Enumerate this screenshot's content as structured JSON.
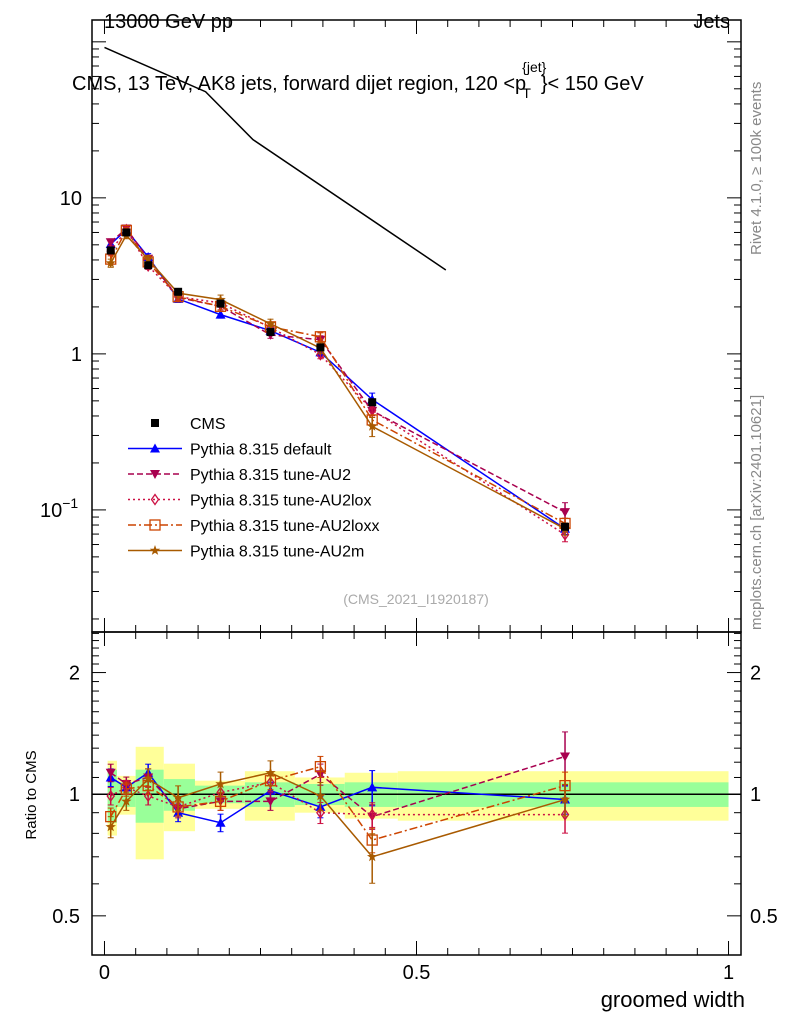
{
  "chart_data": {
    "type": "line",
    "header_left": "13000 GeV pp",
    "header_right": "Jets",
    "title_main": "CMS, 13 TeV, AK8 jets, forward dijet region, 120 <p",
    "title_sup": "{jet}",
    "title_sub": "T",
    "title_end": "}< 150 GeV",
    "side_text_top": "Rivet 4.1.0, ≥ 100k events",
    "side_text_bottom": "mcplots.cern.ch [arXiv:2401.10621]",
    "watermark": "(CMS_2021_I1920187)",
    "xlabel": "groomed width",
    "ratio_ylabel": "Ratio to CMS",
    "xlim": [
      -0.02,
      1.02
    ],
    "ylim_log": [
      0.0165,
      138
    ],
    "ratio_ylim_log": [
      0.4,
      2.52
    ],
    "x_ticks": [
      {
        "v": 0,
        "label": "0"
      },
      {
        "v": 0.5,
        "label": "0.5"
      },
      {
        "v": 1,
        "label": "1"
      }
    ],
    "y_ticks": [
      {
        "v": 10,
        "label": "10"
      },
      {
        "v": 1,
        "label": "1"
      },
      {
        "v": 0.1,
        "label": "10",
        "sup": "−1"
      }
    ],
    "ratio_y_ticks": [
      {
        "v": 2,
        "label": "2"
      },
      {
        "v": 1,
        "label": "1"
      },
      {
        "v": 0.5,
        "label": "0.5"
      }
    ],
    "x": [
      0.01,
      0.035,
      0.07,
      0.118,
      0.186,
      0.266,
      0.346,
      0.429,
      0.738
    ],
    "bin_edges": [
      0.005,
      0.02,
      0.05,
      0.095,
      0.145,
      0.225,
      0.305,
      0.385,
      0.47,
      1.0
    ],
    "data": {
      "name": "CMS",
      "values": [
        4.6,
        6.0,
        3.7,
        2.5,
        2.1,
        1.38,
        1.1,
        0.49,
        0.078
      ],
      "rel_err_outer": [
        0.21,
        0.11,
        0.31,
        0.19,
        0.08,
        0.14,
        0.1,
        0.13,
        0.14
      ],
      "rel_err_inner": [
        0.15,
        0.07,
        0.15,
        0.09,
        0.05,
        0.07,
        0.06,
        0.07,
        0.07
      ]
    },
    "reference_line": {
      "x": [
        0.0,
        0.162,
        0.238,
        0.547
      ],
      "values": [
        92,
        47.9,
        23.6,
        3.45
      ]
    },
    "series": [
      {
        "name": "Pythia 8.315 default",
        "color": "#0000ff",
        "marker": "triangle-up",
        "dash": "",
        "ratio": [
          1.1,
          1.04,
          1.13,
          0.9,
          0.85,
          1.02,
          0.93,
          1.04,
          0.97
        ],
        "rel_err": [
          0.05,
          0.04,
          0.05,
          0.05,
          0.05,
          0.05,
          0.06,
          0.1,
          0.08
        ]
      },
      {
        "name": "Pythia 8.315 tune-AU2",
        "color": "#a8004f",
        "marker": "triangle-down",
        "dash": "6,3",
        "ratio": [
          1.13,
          1.06,
          1.1,
          0.92,
          0.96,
          0.96,
          1.12,
          0.88,
          1.24
        ],
        "rel_err": [
          0.05,
          0.04,
          0.05,
          0.05,
          0.05,
          0.05,
          0.06,
          0.07,
          0.15
        ]
      },
      {
        "name": "Pythia 8.315 tune-AU2lox",
        "color": "#cc1144",
        "marker": "diamond",
        "dash": "2,3",
        "ratio": [
          0.99,
          1.04,
          0.99,
          0.93,
          1.01,
          1.07,
          0.9,
          0.89,
          0.89
        ],
        "rel_err": [
          0.05,
          0.04,
          0.05,
          0.05,
          0.05,
          0.05,
          0.06,
          0.07,
          0.1
        ]
      },
      {
        "name": "Pythia 8.315 tune-AU2loxx",
        "color": "#cc4400",
        "marker": "square-open",
        "dash": "8,3,2,3",
        "ratio": [
          0.88,
          1.03,
          1.05,
          0.93,
          0.96,
          1.08,
          1.17,
          0.77,
          1.05
        ],
        "rel_err": [
          0.05,
          0.04,
          0.05,
          0.05,
          0.05,
          0.05,
          0.06,
          0.07,
          0.08
        ]
      },
      {
        "name": "Pythia 8.315 tune-AU2m",
        "color": "#a85a00",
        "marker": "star",
        "dash": "",
        "ratio": [
          0.83,
          0.96,
          1.09,
          0.98,
          1.06,
          1.13,
          0.99,
          0.7,
          0.97
        ],
        "rel_err": [
          0.06,
          0.05,
          0.06,
          0.07,
          0.07,
          0.07,
          0.08,
          0.14,
          0.09
        ]
      }
    ]
  }
}
